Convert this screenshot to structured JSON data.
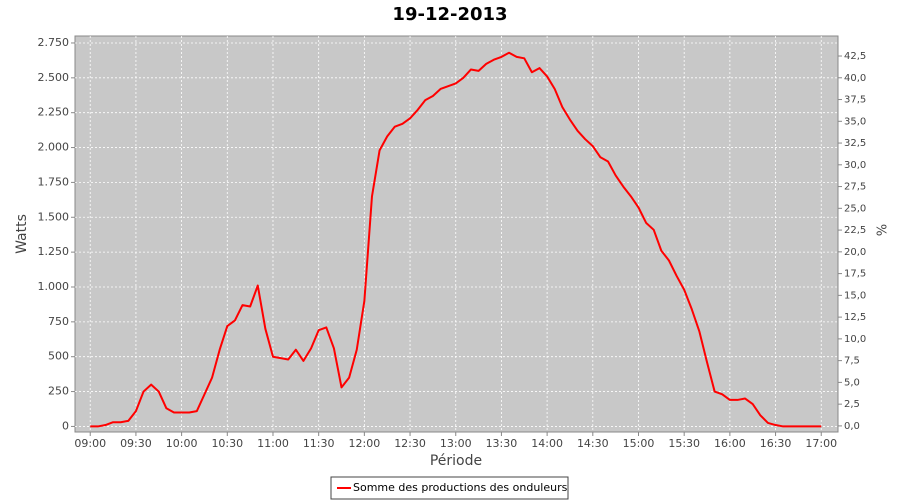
{
  "chart_data": {
    "type": "line",
    "title": "19-12-2013",
    "xlabel": "Période",
    "ylabel": "Watts",
    "y2label": "%",
    "xlim": [
      "08:50",
      "17:11"
    ],
    "xticks": [
      "09:00",
      "09:30",
      "10:00",
      "10:30",
      "11:00",
      "11:30",
      "12:00",
      "12:30",
      "13:00",
      "13:30",
      "14:00",
      "14:30",
      "15:00",
      "15:30",
      "16:00",
      "16:30",
      "17:00"
    ],
    "ylim": [
      -40,
      2800
    ],
    "yticks": [
      0,
      250,
      500,
      750,
      {
        "value": 1000,
        "label": "1.000"
      },
      {
        "value": 1250,
        "label": "1.250"
      },
      {
        "value": 1500,
        "label": "1.500"
      },
      {
        "value": 1750,
        "label": "1.750"
      },
      {
        "value": 2000,
        "label": "2.000"
      },
      {
        "value": 2250,
        "label": "2.250"
      },
      {
        "value": 2500,
        "label": "2.500"
      },
      {
        "value": 2750,
        "label": "2.750"
      }
    ],
    "y2lim": [
      -0.7,
      44.8
    ],
    "y2ticks": [
      {
        "value": 0,
        "label": "0,0"
      },
      {
        "value": 2.5,
        "label": "2,5"
      },
      {
        "value": 5,
        "label": "5,0"
      },
      {
        "value": 7.5,
        "label": "7,5"
      },
      {
        "value": 10,
        "label": "10,0"
      },
      {
        "value": 12.5,
        "label": "12,5"
      },
      {
        "value": 15,
        "label": "15,0"
      },
      {
        "value": 17.5,
        "label": "17,5"
      },
      {
        "value": 20,
        "label": "20,0"
      },
      {
        "value": 22.5,
        "label": "22,5"
      },
      {
        "value": 25,
        "label": "25,0"
      },
      {
        "value": 27.5,
        "label": "27,5"
      },
      {
        "value": 30,
        "label": "30,0"
      },
      {
        "value": 32.5,
        "label": "32,5"
      },
      {
        "value": 35,
        "label": "35,0"
      },
      {
        "value": 37.5,
        "label": "37,5"
      },
      {
        "value": 40,
        "label": "40,0"
      },
      {
        "value": 42.5,
        "label": "42,5"
      }
    ],
    "grid": true,
    "legend": "bottom",
    "x": [
      "09:00",
      "09:05",
      "09:10",
      "09:15",
      "09:20",
      "09:25",
      "09:30",
      "09:35",
      "09:40",
      "09:45",
      "09:50",
      "09:55",
      "10:00",
      "10:05",
      "10:10",
      "10:15",
      "10:20",
      "10:25",
      "10:30",
      "10:35",
      "10:40",
      "10:45",
      "10:50",
      "10:55",
      "11:00",
      "11:05",
      "11:10",
      "11:15",
      "11:20",
      "11:25",
      "11:30",
      "11:35",
      "11:40",
      "11:45",
      "11:50",
      "11:55",
      "12:00",
      "12:05",
      "12:10",
      "12:15",
      "12:20",
      "12:25",
      "12:30",
      "12:35",
      "12:40",
      "12:45",
      "12:50",
      "12:55",
      "13:00",
      "13:05",
      "13:10",
      "13:15",
      "13:20",
      "13:25",
      "13:30",
      "13:35",
      "13:40",
      "13:45",
      "13:50",
      "13:55",
      "14:00",
      "14:05",
      "14:10",
      "14:15",
      "14:20",
      "14:25",
      "14:30",
      "14:35",
      "14:40",
      "14:45",
      "14:50",
      "14:55",
      "15:00",
      "15:05",
      "15:10",
      "15:15",
      "15:20",
      "15:25",
      "15:30",
      "15:35",
      "15:40",
      "15:45",
      "15:50",
      "15:55",
      "16:00",
      "16:05",
      "16:10",
      "16:15",
      "16:20",
      "16:25",
      "16:30",
      "16:35",
      "16:40",
      "16:45",
      "16:50",
      "16:55",
      "17:00"
    ],
    "series": [
      {
        "name": "Somme des productions des onduleurs",
        "color": "#ff0000",
        "values": [
          0,
          0,
          10,
          30,
          30,
          40,
          110,
          250,
          300,
          250,
          130,
          100,
          100,
          100,
          110,
          230,
          350,
          550,
          720,
          760,
          870,
          860,
          1010,
          700,
          500,
          490,
          480,
          550,
          470,
          560,
          690,
          710,
          560,
          280,
          350,
          550,
          900,
          1650,
          1980,
          2080,
          2150,
          2170,
          2210,
          2270,
          2340,
          2370,
          2420,
          2440,
          2460,
          2500,
          2560,
          2550,
          2600,
          2630,
          2650,
          2680,
          2650,
          2640,
          2540,
          2570,
          2510,
          2420,
          2290,
          2200,
          2120,
          2060,
          2010,
          1930,
          1900,
          1800,
          1720,
          1650,
          1570,
          1460,
          1410,
          1260,
          1190,
          1080,
          980,
          840,
          680,
          460,
          250,
          230,
          190,
          190,
          200,
          160,
          80,
          25,
          10,
          0,
          0,
          0,
          0,
          0,
          0
        ]
      }
    ]
  }
}
